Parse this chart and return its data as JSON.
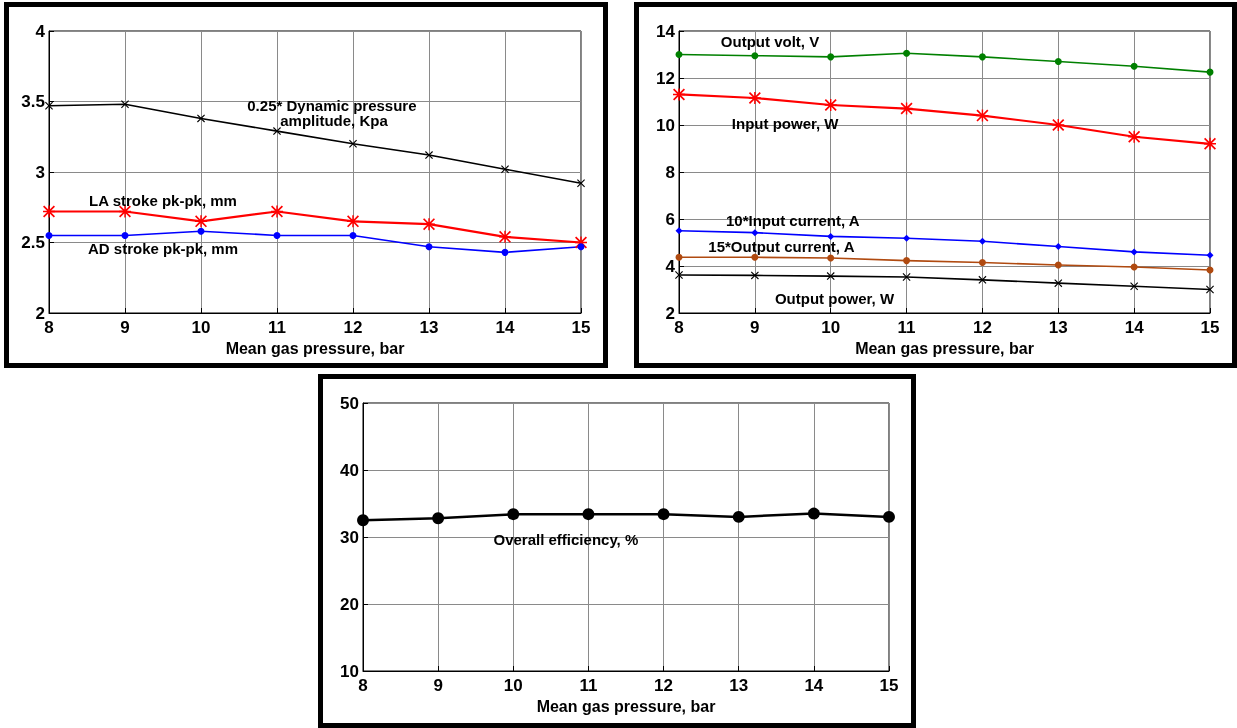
{
  "chart_data": [
    {
      "type": "line",
      "x": [
        8,
        9,
        10,
        11,
        12,
        13,
        14,
        15
      ],
      "xlim": [
        8,
        15
      ],
      "xticks": [
        8,
        9,
        10,
        11,
        12,
        13,
        14,
        15
      ],
      "ylim": [
        2,
        4
      ],
      "yticks": [
        2,
        2.5,
        3,
        3.5,
        4
      ],
      "xlabel": "Mean gas pressure, bar",
      "grid": true,
      "series": [
        {
          "name": "0.25* Dynamic pressure amplitude, Kpa",
          "color": "#000000",
          "marker": "cross",
          "values": [
            3.47,
            3.48,
            3.38,
            3.29,
            3.2,
            3.12,
            3.02,
            2.92
          ]
        },
        {
          "name": "LA stroke pk-pk, mm",
          "color": "#ff0000",
          "marker": "star",
          "values": [
            2.72,
            2.72,
            2.65,
            2.72,
            2.65,
            2.63,
            2.54,
            2.5
          ]
        },
        {
          "name": "AD stroke pk-pk, mm",
          "color": "#0000ff",
          "marker": "circle",
          "values": [
            2.55,
            2.55,
            2.58,
            2.55,
            2.55,
            2.47,
            2.43,
            2.47
          ]
        }
      ]
    },
    {
      "type": "line",
      "x": [
        8,
        9,
        10,
        11,
        12,
        13,
        14,
        15
      ],
      "xlim": [
        8,
        15
      ],
      "xticks": [
        8,
        9,
        10,
        11,
        12,
        13,
        14,
        15
      ],
      "ylim": [
        2,
        14
      ],
      "yticks": [
        2,
        4,
        6,
        8,
        10,
        12,
        14
      ],
      "xlabel": "Mean gas pressure, bar",
      "grid": true,
      "series": [
        {
          "name": "Output volt, V",
          "color": "#008000",
          "marker": "circle",
          "values": [
            13.0,
            12.95,
            12.9,
            13.05,
            12.9,
            12.7,
            12.5,
            12.25
          ]
        },
        {
          "name": "Input power, W",
          "color": "#ff0000",
          "marker": "star",
          "values": [
            11.3,
            11.15,
            10.85,
            10.7,
            10.4,
            10.0,
            9.5,
            9.2
          ]
        },
        {
          "name": "10*Input current, A",
          "color": "#0000ff",
          "marker": "diamond",
          "values": [
            5.5,
            5.42,
            5.26,
            5.18,
            5.05,
            4.83,
            4.6,
            4.46
          ]
        },
        {
          "name": "15*Output current, A",
          "color": "#b04a10",
          "marker": "circle",
          "values": [
            4.37,
            4.37,
            4.34,
            4.23,
            4.15,
            4.04,
            3.96,
            3.83
          ]
        },
        {
          "name": "Output power, W",
          "color": "#000000",
          "marker": "cross",
          "values": [
            3.62,
            3.6,
            3.57,
            3.53,
            3.41,
            3.27,
            3.14,
            3.0
          ]
        }
      ]
    },
    {
      "type": "line",
      "x": [
        8,
        9,
        10,
        11,
        12,
        13,
        14,
        15
      ],
      "xlim": [
        8,
        15
      ],
      "xticks": [
        8,
        9,
        10,
        11,
        12,
        13,
        14,
        15
      ],
      "ylim": [
        10,
        50
      ],
      "yticks": [
        10,
        20,
        30,
        40,
        50
      ],
      "xlabel": "Mean gas pressure, bar",
      "grid": true,
      "series": [
        {
          "name": "Overall efficiency, %",
          "color": "#000000",
          "marker": "circle",
          "values": [
            32.5,
            32.8,
            33.4,
            33.4,
            33.4,
            33.0,
            33.5,
            33.0
          ]
        }
      ]
    }
  ]
}
